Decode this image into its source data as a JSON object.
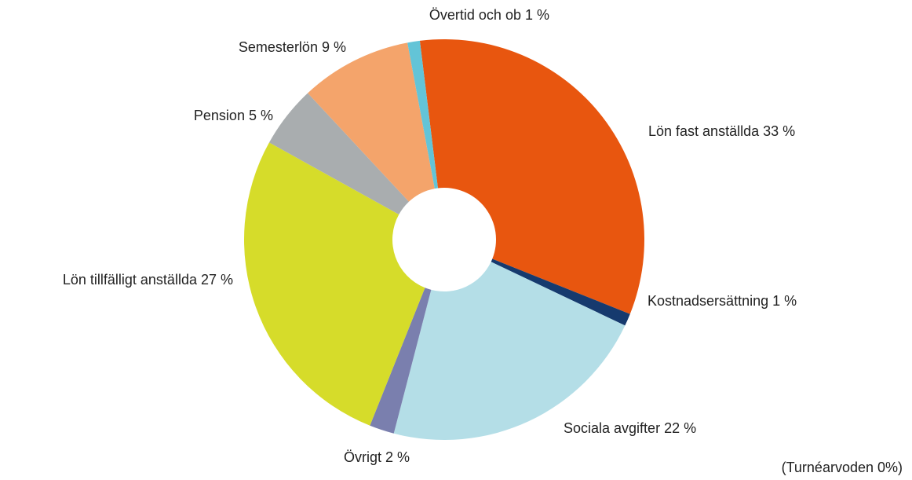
{
  "chart_data": {
    "type": "donut",
    "categories": [
      "Lön fast anställda",
      "Kostnadsersättning",
      "Sociala avgifter",
      "Övrigt",
      "Lön tillfälligt anställda",
      "Pension",
      "Semesterlön",
      "Övertid och ob"
    ],
    "values": [
      33,
      1,
      22,
      2,
      27,
      5,
      9,
      1
    ],
    "value_labels": [
      "33 %",
      "1 %",
      "22 %",
      "2 %",
      "27 %",
      "5 %",
      "9 %",
      "1 %"
    ],
    "colors": [
      "#e8560f",
      "#163a6e",
      "#b4dee7",
      "#7a7fae",
      "#d6dc2a",
      "#a9adaf",
      "#f4a46b",
      "#63c4d7"
    ],
    "annotation": "(Turnéarvoden 0%)"
  }
}
